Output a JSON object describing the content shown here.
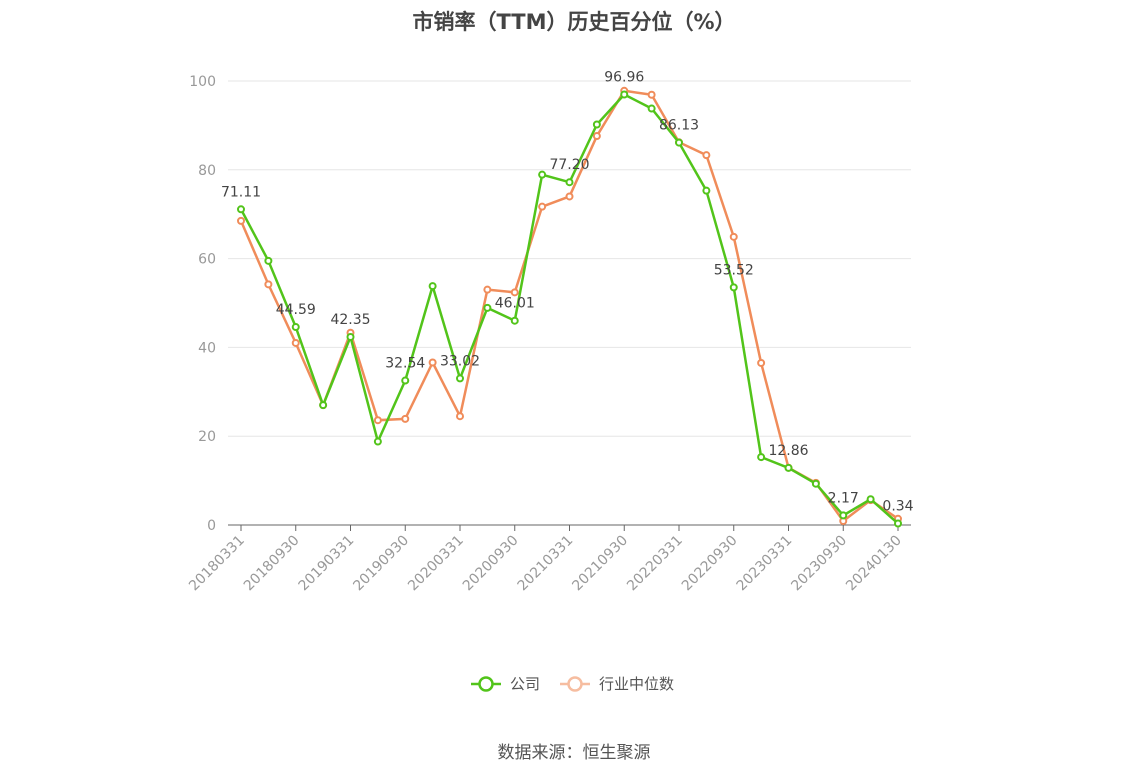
{
  "title": "市销率（TTM）历史百分位（%）",
  "source": "数据来源：恒生聚源",
  "colors": {
    "company": "#52c41a",
    "industry": "#f08c5a",
    "industry_legend": "#f6bda0",
    "grid": "#e6e6e6",
    "axis": "#666666"
  },
  "chart_data": {
    "type": "line",
    "title": "市销率（TTM）历史百分位（%）",
    "ylim": [
      0,
      100
    ],
    "yticks": [
      0,
      20,
      40,
      60,
      80,
      100
    ],
    "grid": true,
    "legend_position": "bottom",
    "x": [
      "20180331",
      "20180630",
      "20180930",
      "20181231",
      "20190331",
      "20190630",
      "20190930",
      "20191231",
      "20200331",
      "20200630",
      "20200930",
      "20201231",
      "20210331",
      "20210630",
      "20210930",
      "20211231",
      "20220331",
      "20220630",
      "20220930",
      "20221231",
      "20230331",
      "20230630",
      "20230930",
      "20231231",
      "20240130"
    ],
    "xtick_labels": [
      "20180331",
      "20180930",
      "20190331",
      "20190930",
      "20200331",
      "20200930",
      "20210331",
      "20210930",
      "20220331",
      "20220930",
      "20230331",
      "20230930",
      "20240130"
    ],
    "xtick_indices": [
      0,
      2,
      4,
      6,
      8,
      10,
      12,
      14,
      16,
      18,
      20,
      22,
      24
    ],
    "series": [
      {
        "name": "公司",
        "values": [
          71.11,
          59.5,
          44.59,
          27.0,
          42.35,
          18.8,
          32.54,
          53.8,
          33.02,
          48.9,
          46.01,
          78.9,
          77.2,
          90.2,
          96.96,
          93.8,
          86.13,
          75.3,
          53.52,
          15.3,
          12.86,
          9.3,
          2.17,
          5.8,
          0.34
        ],
        "labeled_indices": [
          0,
          2,
          4,
          6,
          8,
          10,
          12,
          14,
          16,
          18,
          20,
          22,
          24
        ]
      },
      {
        "name": "行业中位数",
        "values": [
          68.5,
          54.2,
          41.0,
          27.0,
          43.3,
          23.6,
          23.9,
          36.6,
          24.5,
          53.0,
          52.4,
          71.7,
          74.0,
          87.6,
          97.8,
          96.9,
          86.2,
          83.3,
          64.9,
          36.5,
          12.9,
          9.5,
          0.9,
          5.6,
          1.4
        ]
      }
    ]
  }
}
